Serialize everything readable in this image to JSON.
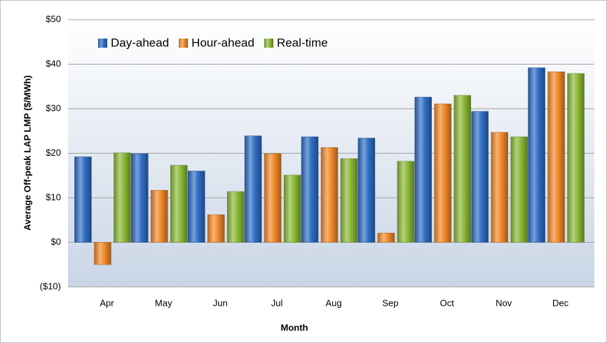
{
  "chart_data": {
    "type": "bar",
    "x_label": "Month",
    "y_label": "Average Off-peak  LAP LMP ($/MWh)",
    "categories": [
      "Apr",
      "May",
      "Jun",
      "Jul",
      "Aug",
      "Sep",
      "Oct",
      "Nov",
      "Dec"
    ],
    "series": [
      {
        "name": "Day-ahead",
        "color": "#2f6fc6",
        "values": [
          19.2,
          19.9,
          16.0,
          23.9,
          23.7,
          23.4,
          32.6,
          29.4,
          39.2
        ]
      },
      {
        "name": "Hour-ahead",
        "color": "#f28a2a",
        "values": [
          -5.0,
          11.7,
          6.2,
          19.9,
          21.3,
          2.1,
          31.1,
          24.7,
          38.3
        ]
      },
      {
        "name": "Real-time",
        "color": "#8cba38",
        "values": [
          20.1,
          17.3,
          11.4,
          15.1,
          18.8,
          18.2,
          33.0,
          23.7,
          37.9
        ]
      }
    ],
    "ylim": [
      -10,
      50
    ],
    "yticks": [
      {
        "value": -10,
        "label": "($10)"
      },
      {
        "value": 0,
        "label": "$0"
      },
      {
        "value": 10,
        "label": "$10"
      },
      {
        "value": 20,
        "label": "$20"
      },
      {
        "value": 30,
        "label": "$30"
      },
      {
        "value": 40,
        "label": "$40"
      },
      {
        "value": 50,
        "label": "$50"
      }
    ],
    "grid": true,
    "legend": "top-left"
  }
}
